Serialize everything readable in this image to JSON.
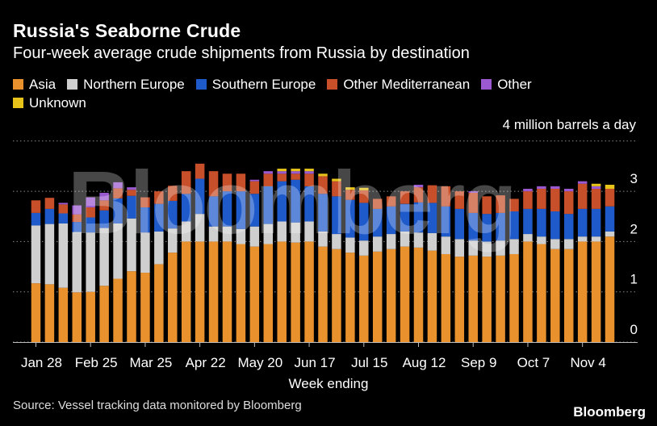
{
  "chart_data": {
    "type": "bar",
    "stacked": true,
    "title": "Russia's Seaborne Crude",
    "subtitle": "Four-week average crude shipments from Russia by destination",
    "unit_label": "4 million barrels a day",
    "xlabel": "Week ending",
    "ylim": [
      0,
      4
    ],
    "yticks": [
      0,
      1,
      2,
      3
    ],
    "grid": true,
    "legend_position": "top",
    "x_tick_labels": [
      "Jan 28",
      "Feb 25",
      "Mar 25",
      "Apr 22",
      "May 20",
      "Jun 17",
      "Jul 15",
      "Aug 12",
      "Sep 9",
      "Oct 7",
      "Nov 4"
    ],
    "x_tick_positions": [
      0,
      4,
      8,
      12,
      16,
      20,
      24,
      28,
      32,
      36,
      40
    ],
    "categories": [
      "Jan 28",
      "Feb 4",
      "Feb 11",
      "Feb 18",
      "Feb 25",
      "Mar 4",
      "Mar 11",
      "Mar 18",
      "Mar 25",
      "Apr 1",
      "Apr 8",
      "Apr 15",
      "Apr 22",
      "Apr 29",
      "May 6",
      "May 13",
      "May 20",
      "May 27",
      "Jun 3",
      "Jun 10",
      "Jun 17",
      "Jun 24",
      "Jul 1",
      "Jul 8",
      "Jul 15",
      "Jul 22",
      "Jul 29",
      "Aug 5",
      "Aug 12",
      "Aug 19",
      "Aug 26",
      "Sep 2",
      "Sep 9",
      "Sep 16",
      "Sep 23",
      "Sep 30",
      "Oct 7",
      "Oct 14",
      "Oct 21",
      "Oct 28",
      "Nov 4",
      "Nov 11",
      "Nov 18"
    ],
    "series": [
      {
        "name": "Asia",
        "color": "#E8912D",
        "values": [
          1.17,
          1.15,
          1.08,
          0.99,
          1.0,
          1.12,
          1.26,
          1.41,
          1.38,
          1.55,
          1.78,
          2.0,
          2.0,
          2.0,
          2.0,
          1.95,
          1.9,
          1.95,
          2.0,
          1.98,
          2.0,
          1.9,
          1.85,
          1.78,
          1.72,
          1.8,
          1.85,
          1.9,
          1.88,
          1.82,
          1.75,
          1.7,
          1.72,
          1.7,
          1.72,
          1.75,
          2.0,
          1.95,
          1.85,
          1.85,
          2.0,
          2.0,
          2.1
        ]
      },
      {
        "name": "Northern Europe",
        "color": "#CFCFCF",
        "values": [
          1.15,
          1.2,
          1.28,
          1.2,
          1.18,
          1.15,
          1.1,
          1.05,
          0.8,
          0.65,
          0.48,
          0.4,
          0.55,
          0.3,
          0.3,
          0.3,
          0.4,
          0.4,
          0.4,
          0.4,
          0.4,
          0.3,
          0.3,
          0.3,
          0.3,
          0.3,
          0.3,
          0.3,
          0.3,
          0.35,
          0.35,
          0.35,
          0.3,
          0.3,
          0.3,
          0.3,
          0.15,
          0.15,
          0.2,
          0.2,
          0.1,
          0.1,
          0.1
        ]
      },
      {
        "name": "Southern Europe",
        "color": "#1F5ACB",
        "values": [
          0.25,
          0.3,
          0.2,
          0.2,
          0.3,
          0.35,
          0.5,
          0.45,
          0.5,
          0.55,
          0.55,
          0.55,
          0.7,
          0.6,
          0.7,
          0.75,
          0.65,
          0.75,
          0.8,
          0.85,
          0.7,
          0.75,
          0.75,
          0.75,
          0.75,
          0.55,
          0.55,
          0.55,
          0.6,
          0.6,
          0.6,
          0.6,
          0.55,
          0.55,
          0.55,
          0.55,
          0.5,
          0.55,
          0.55,
          0.5,
          0.55,
          0.55,
          0.5
        ]
      },
      {
        "name": "Other Mediterranean",
        "color": "#C7502A",
        "values": [
          0.25,
          0.22,
          0.18,
          0.15,
          0.2,
          0.2,
          0.2,
          0.12,
          0.2,
          0.25,
          0.3,
          0.45,
          0.3,
          0.5,
          0.35,
          0.35,
          0.25,
          0.25,
          0.15,
          0.12,
          0.25,
          0.35,
          0.3,
          0.2,
          0.25,
          0.2,
          0.2,
          0.25,
          0.3,
          0.35,
          0.4,
          0.35,
          0.4,
          0.35,
          0.35,
          0.25,
          0.35,
          0.4,
          0.45,
          0.45,
          0.5,
          0.4,
          0.35
        ]
      },
      {
        "name": "Other",
        "color": "#9A59D0",
        "values": [
          0.0,
          0.0,
          0.03,
          0.18,
          0.2,
          0.15,
          0.12,
          0.05,
          0.0,
          0.0,
          0.0,
          0.0,
          0.0,
          0.0,
          0.0,
          0.0,
          0.03,
          0.05,
          0.05,
          0.05,
          0.05,
          0.0,
          0.0,
          0.0,
          0.0,
          0.0,
          0.0,
          0.0,
          0.05,
          0.0,
          0.0,
          0.0,
          0.03,
          0.0,
          0.0,
          0.0,
          0.05,
          0.05,
          0.05,
          0.05,
          0.05,
          0.05,
          0.0
        ]
      },
      {
        "name": "Unknown",
        "color": "#E8C319",
        "values": [
          0.0,
          0.0,
          0.0,
          0.0,
          0.0,
          0.0,
          0.0,
          0.0,
          0.0,
          0.0,
          0.0,
          0.0,
          0.0,
          0.0,
          0.0,
          0.0,
          0.0,
          0.0,
          0.05,
          0.05,
          0.05,
          0.05,
          0.05,
          0.05,
          0.05,
          0.0,
          0.0,
          0.0,
          0.0,
          0.0,
          0.0,
          0.0,
          0.0,
          0.0,
          0.0,
          0.0,
          0.0,
          0.0,
          0.0,
          0.0,
          0.0,
          0.05,
          0.08
        ]
      }
    ]
  },
  "source": "Source: Vessel tracking data monitored by Bloomberg",
  "brand": "Bloomberg",
  "watermark": "Bloomberg",
  "colors": {
    "background": "#000000",
    "grid": "#8a8a8a",
    "text": "#ffffff"
  }
}
